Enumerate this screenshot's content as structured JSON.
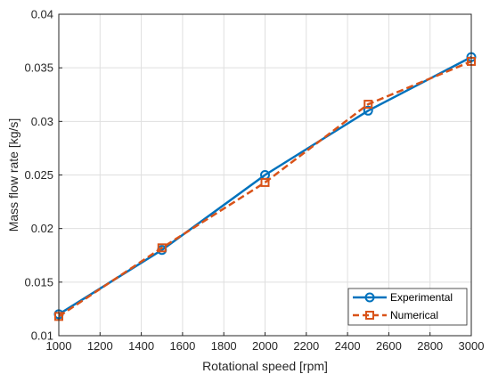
{
  "chart_data": {
    "type": "line",
    "xlabel": "Rotational speed [rpm]",
    "ylabel": "Mass flow rate [kg/s]",
    "xlim": [
      1000,
      3000
    ],
    "ylim": [
      0.01,
      0.04
    ],
    "xticks": [
      "1000",
      "1200",
      "1400",
      "1600",
      "1800",
      "2000",
      "2200",
      "2400",
      "2600",
      "2800",
      "3000"
    ],
    "yticks": [
      "0.01",
      "0.015",
      "0.02",
      "0.025",
      "0.03",
      "0.035",
      "0.04"
    ],
    "grid": true,
    "legend_position": "bottom-right",
    "series": [
      {
        "name": "Experimental",
        "x": [
          1000,
          1500,
          2000,
          2500,
          3000
        ],
        "y": [
          0.012,
          0.018,
          0.025,
          0.031,
          0.036
        ],
        "color": "#0072BD",
        "line_style": "solid",
        "marker": "circle"
      },
      {
        "name": "Numerical",
        "x": [
          1000,
          1500,
          2000,
          2500,
          3000
        ],
        "y": [
          0.0118,
          0.0182,
          0.0243,
          0.0316,
          0.0356
        ],
        "color": "#D95319",
        "line_style": "dashed",
        "marker": "square"
      }
    ]
  }
}
